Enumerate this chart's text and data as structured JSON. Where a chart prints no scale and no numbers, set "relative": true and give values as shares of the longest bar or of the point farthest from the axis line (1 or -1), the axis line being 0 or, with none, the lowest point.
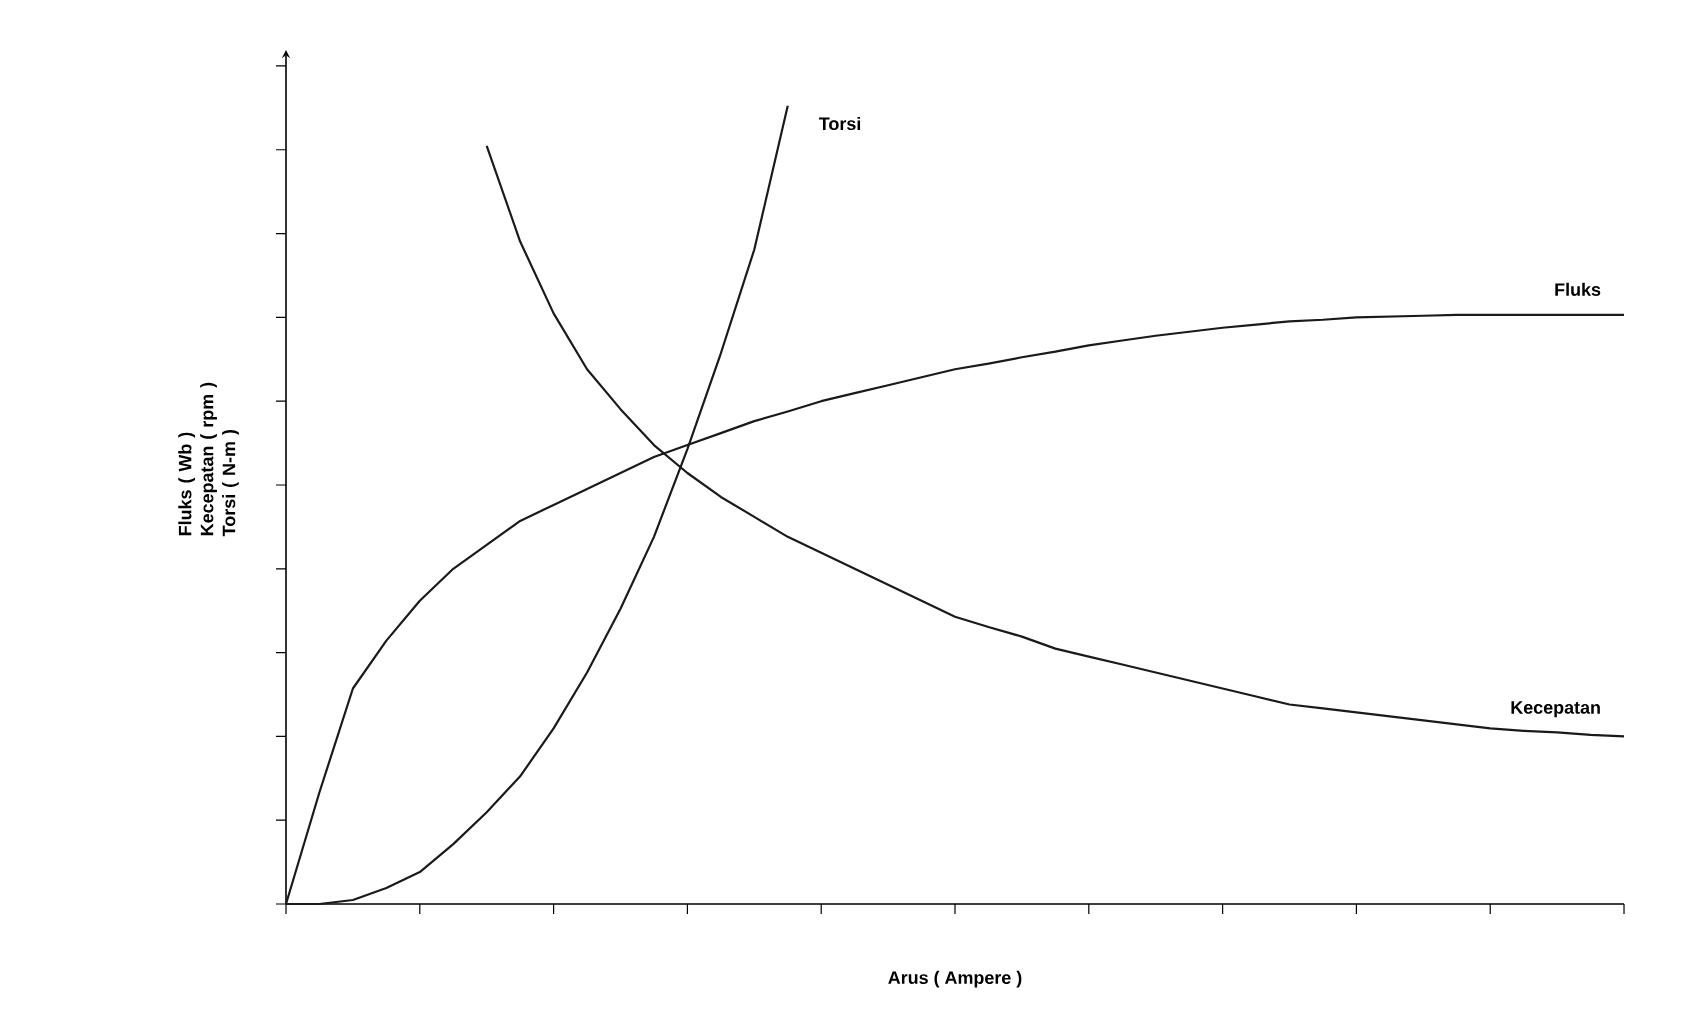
{
  "chart_data": {
    "type": "line",
    "relative": true,
    "xlabel": "Arus ( Ampere )",
    "ylabel": "Fluks ( Wb )\nKecepatan ( rpm )\nTorsi ( N-m )",
    "categories": [
      null,
      null,
      null,
      null,
      null,
      null,
      null,
      null,
      null,
      null,
      null,
      null,
      null,
      null,
      null,
      null,
      null,
      null,
      null,
      null,
      null,
      null,
      null,
      null,
      null,
      null,
      null,
      null,
      null,
      null,
      null,
      null,
      null,
      null,
      null,
      null,
      null,
      null,
      null,
      null,
      null
    ],
    "series": [
      {
        "name": "Fluks",
        "color": "#1a1a1a",
        "values": [
          0,
          0.14,
          0.27,
          0.33,
          0.38,
          0.42,
          0.45,
          0.48,
          0.5,
          0.52,
          0.54,
          0.56,
          0.575,
          0.59,
          0.605,
          0.617,
          0.63,
          0.64,
          0.65,
          0.66,
          0.67,
          0.677,
          0.685,
          0.692,
          0.7,
          0.706,
          0.712,
          0.717,
          0.722,
          0.726,
          0.73,
          0.732,
          0.735,
          0.736,
          0.737,
          0.738,
          0.738,
          0.738,
          0.738,
          0.738,
          0.738
        ]
      },
      {
        "name": "Kecepatan",
        "color": "#1a1a1a",
        "values": [
          null,
          null,
          null,
          null,
          null,
          null,
          0.95,
          0.83,
          0.74,
          0.67,
          0.62,
          0.575,
          0.54,
          0.51,
          0.485,
          0.46,
          0.44,
          0.42,
          0.4,
          0.38,
          0.36,
          0.347,
          0.335,
          0.32,
          0.31,
          0.3,
          0.29,
          0.28,
          0.27,
          0.26,
          0.25,
          0.245,
          0.24,
          0.235,
          0.23,
          0.225,
          0.22,
          0.217,
          0.215,
          0.212,
          0.21
        ]
      },
      {
        "name": "Torsi",
        "color": "#1a1a1a",
        "values": [
          0,
          0,
          0.005,
          0.02,
          0.04,
          0.075,
          0.115,
          0.16,
          0.22,
          0.29,
          0.37,
          0.46,
          0.57,
          0.69,
          0.82,
          1.0,
          null,
          null,
          null,
          null,
          null,
          null,
          null,
          null,
          null,
          null,
          null,
          null,
          null,
          null,
          null,
          null,
          null,
          null,
          null,
          null,
          null,
          null,
          null,
          null,
          null
        ]
      }
    ],
    "grid": false,
    "marker": "none",
    "line_style": "solid"
  }
}
